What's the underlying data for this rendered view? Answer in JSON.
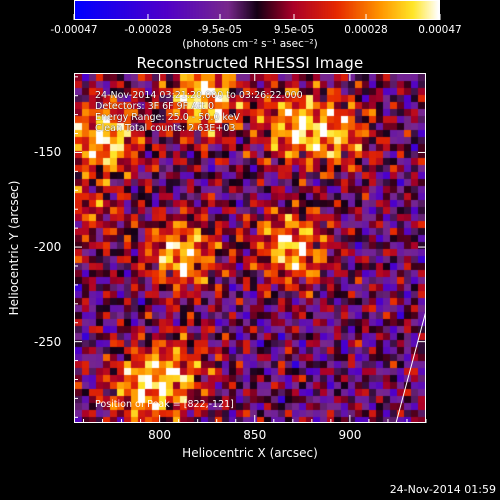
{
  "colorbar": {
    "ticks": [
      "-0.00047",
      "-0.00028",
      "-9.5e-05",
      "9.5e-05",
      "0.00028",
      "0.00047"
    ],
    "units_label": "(photons cm⁻² s⁻¹ asec⁻²)"
  },
  "title": "Reconstructed RHESSI Image",
  "info_lines": [
    "24-Nov-2014 03:21:20.000 to 03:26:22.000",
    "Detectors: 3F 6F 9F Att 0",
    "Energy Range: 25.0 - 50.0 keV",
    "Clean    Total counts: 2.63E+03"
  ],
  "peak_text": "Position of Peak = [822,-121]",
  "axes": {
    "x_label": "Heliocentric X (arcsec)",
    "y_label": "Heliocentric Y (arcsec)",
    "x_ticks": [
      "800",
      "850",
      "900"
    ],
    "y_ticks": [
      "-150",
      "-200",
      "-250"
    ]
  },
  "timestamp": "24-Nov-2014 01:59",
  "chart_data": {
    "type": "heatmap",
    "title": "Reconstructed RHESSI Image",
    "xlabel": "Heliocentric X (arcsec)",
    "ylabel": "Heliocentric Y (arcsec)",
    "xlim": [
      755,
      940
    ],
    "ylim": [
      -293,
      -108
    ],
    "x_ticks": [
      800,
      850,
      900
    ],
    "y_ticks": [
      -150,
      -200,
      -250
    ],
    "colorbar_range": [
      -0.00047,
      0.00047
    ],
    "colorbar_ticks": [
      -0.00047,
      -0.00028,
      -9.5e-05,
      9.5e-05,
      0.00028,
      0.00047
    ],
    "colormap": "blue-purple-red-yellow-white",
    "peak_position": [
      822,
      -121
    ],
    "sources": [
      {
        "x": 770,
        "y": -142,
        "intensity": 0.00045
      },
      {
        "x": 822,
        "y": -121,
        "intensity": 0.00047
      },
      {
        "x": 870,
        "y": -135,
        "intensity": 0.00035
      },
      {
        "x": 895,
        "y": -140,
        "intensity": 0.0003
      },
      {
        "x": 812,
        "y": -203,
        "intensity": 0.0004
      },
      {
        "x": 870,
        "y": -200,
        "intensity": 0.00042
      },
      {
        "x": 792,
        "y": -275,
        "intensity": 0.00036
      },
      {
        "x": 810,
        "y": -265,
        "intensity": 0.00025
      },
      {
        "x": 760,
        "y": -185,
        "intensity": 0.0002
      }
    ]
  }
}
